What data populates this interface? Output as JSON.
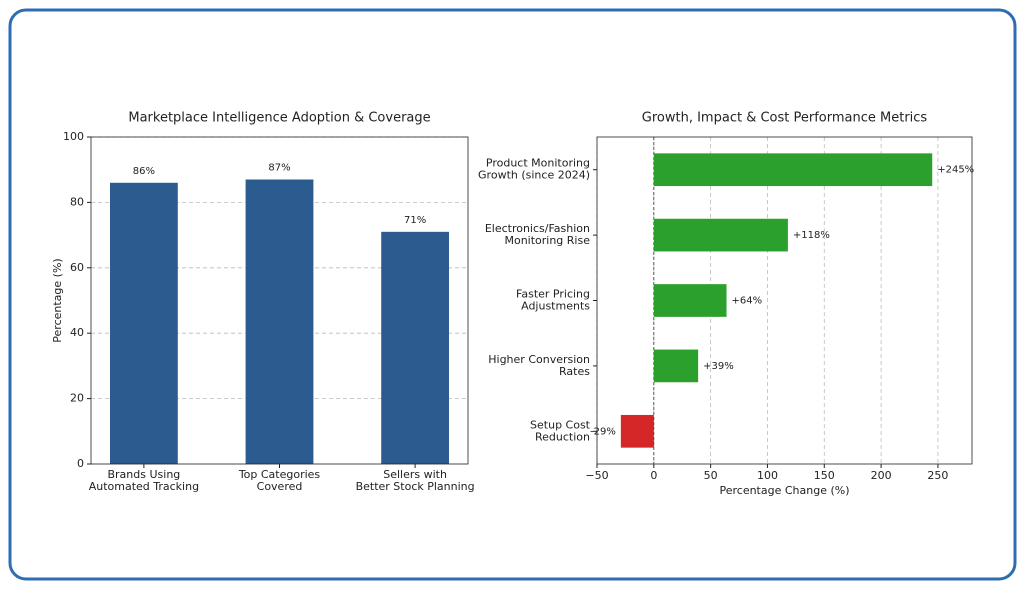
{
  "chart_data": [
    {
      "type": "bar",
      "title": "Marketplace Intelligence Adoption & Coverage",
      "ylabel": "Percentage (%)",
      "categories": [
        [
          "Brands Using",
          "Automated Tracking"
        ],
        [
          "Top Categories",
          "Covered"
        ],
        [
          "Sellers with",
          "Better Stock Planning"
        ]
      ],
      "values": [
        86,
        87,
        71
      ],
      "value_labels": [
        "86%",
        "87%",
        "71%"
      ],
      "color": "#2c5b8f",
      "ylim": [
        0,
        100
      ],
      "yticks": [
        0,
        20,
        40,
        60,
        80,
        100
      ],
      "grid": true
    },
    {
      "type": "barh",
      "title": "Growth, Impact & Cost Performance Metrics",
      "xlabel": "Percentage Change (%)",
      "categories": [
        [
          "Product Monitoring",
          "Growth (since 2024)"
        ],
        [
          "Electronics/Fashion",
          "Monitoring Rise"
        ],
        [
          "Faster Pricing",
          "Adjustments"
        ],
        [
          "Higher Conversion",
          "Rates"
        ],
        [
          "Setup Cost",
          "Reduction"
        ]
      ],
      "values": [
        245,
        118,
        64,
        39,
        -29
      ],
      "value_labels": [
        "+245%",
        "+118%",
        "+64%",
        "+39%",
        "-29%"
      ],
      "colors": [
        "#2ca02c",
        "#2ca02c",
        "#2ca02c",
        "#2ca02c",
        "#d62728"
      ],
      "xlim": [
        -50,
        280
      ],
      "xticks": [
        {
          "value": -50,
          "label": "−50"
        },
        0,
        50,
        100,
        150,
        200,
        250
      ],
      "grid": true
    }
  ]
}
